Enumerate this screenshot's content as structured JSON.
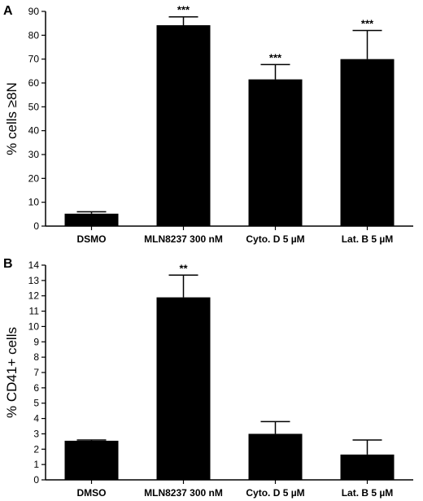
{
  "chart_data": [
    {
      "type": "bar",
      "panel": "A",
      "title": "",
      "xlabel": "",
      "ylabel": "% cells ≥8N",
      "ylim": [
        0,
        90
      ],
      "yticks": [
        0,
        10,
        20,
        30,
        40,
        50,
        60,
        70,
        80,
        90
      ],
      "categories": [
        "DSMO",
        "MLN8237 300 nM",
        "Cyto. D 5 µM",
        "Lat. B 5 µM"
      ],
      "values": [
        5.2,
        84.2,
        61.5,
        70.0
      ],
      "errors": [
        0.8,
        3.5,
        6.2,
        12.0
      ],
      "significance": [
        "",
        "***",
        "***",
        "***"
      ],
      "bar_color": "#000000",
      "grid": false
    },
    {
      "type": "bar",
      "panel": "B",
      "title": "",
      "xlabel": "",
      "ylabel": "% CD41+ cells",
      "ylim": [
        0,
        14
      ],
      "yticks": [
        0,
        1,
        2,
        3,
        4,
        5,
        6,
        7,
        8,
        9,
        10,
        11,
        12,
        13,
        14
      ],
      "categories": [
        "DMSO",
        "MLN8237 300 nM",
        "Cyto. D 5 µM",
        "Lat. B 5 µM"
      ],
      "values": [
        2.55,
        11.9,
        3.0,
        1.65
      ],
      "errors": [
        0.05,
        1.45,
        0.8,
        0.95
      ],
      "significance": [
        "",
        "**",
        "",
        ""
      ],
      "bar_color": "#000000",
      "grid": false
    }
  ]
}
